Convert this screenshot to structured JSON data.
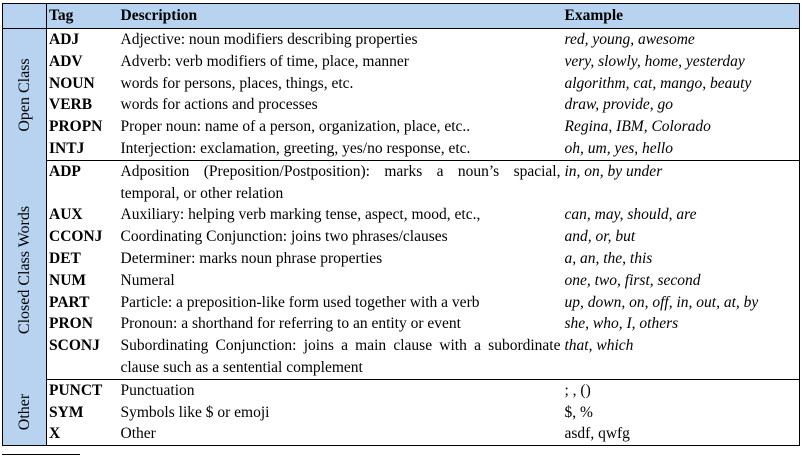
{
  "table": {
    "headers": {
      "tag": "Tag",
      "description": "Description",
      "example": "Example"
    },
    "groups": [
      {
        "label": "Open Class",
        "rows": [
          {
            "tag": "ADJ",
            "description": "Adjective: noun modifiers describing properties",
            "example": "red, young, awesome"
          },
          {
            "tag": "ADV",
            "description": "Adverb: verb modifiers of time, place, manner",
            "example": "very, slowly, home, yesterday"
          },
          {
            "tag": "NOUN",
            "description": "words for persons, places, things, etc.",
            "example": "algorithm, cat, mango, beauty"
          },
          {
            "tag": "VERB",
            "description": "words for actions and processes",
            "example": "draw, provide, go"
          },
          {
            "tag": "PROPN",
            "description": "Proper noun: name of a person, organization, place, etc..",
            "example": "Regina, IBM, Colorado"
          },
          {
            "tag": "INTJ",
            "description": "Interjection: exclamation, greeting, yes/no response, etc.",
            "example": "oh, um, yes, hello"
          }
        ]
      },
      {
        "label": "Closed Class Words",
        "rows": [
          {
            "tag": "ADP",
            "description": "Adposition (Preposition/Postposition): marks a noun’s spacial, temporal, or other relation",
            "example": "in, on, by under"
          },
          {
            "tag": "AUX",
            "description": "Auxiliary: helping verb marking tense, aspect, mood, etc.,",
            "example": "can, may, should, are"
          },
          {
            "tag": "CCONJ",
            "description": "Coordinating Conjunction: joins two phrases/clauses",
            "example": "and, or, but"
          },
          {
            "tag": "DET",
            "description": "Determiner: marks noun phrase properties",
            "example": "a, an, the, this"
          },
          {
            "tag": "NUM",
            "description": "Numeral",
            "example": "one, two, first, second"
          },
          {
            "tag": "PART",
            "description": "Particle: a preposition-like form used together with a verb",
            "example": "up, down, on, off, in, out, at, by"
          },
          {
            "tag": "PRON",
            "description": "Pronoun: a shorthand for referring to an entity or event",
            "example": "she, who, I, others"
          },
          {
            "tag": "SCONJ",
            "description": "Subordinating Conjunction: joins a main clause with a subordinate clause such as a sentential complement",
            "example": "that, which"
          }
        ]
      },
      {
        "label": "Other",
        "rows": [
          {
            "tag": "PUNCT",
            "description": "Punctuation",
            "example": "; , ()"
          },
          {
            "tag": "SYM",
            "description": "Symbols like $ or emoji",
            "example": "$, %"
          },
          {
            "tag": "X",
            "description": "Other",
            "example": "asdf, qwfg"
          }
        ]
      }
    ]
  },
  "colors": {
    "header_fill": "#b8d3ef",
    "group_fill": "#b8d3ef",
    "rule": "#000000"
  }
}
